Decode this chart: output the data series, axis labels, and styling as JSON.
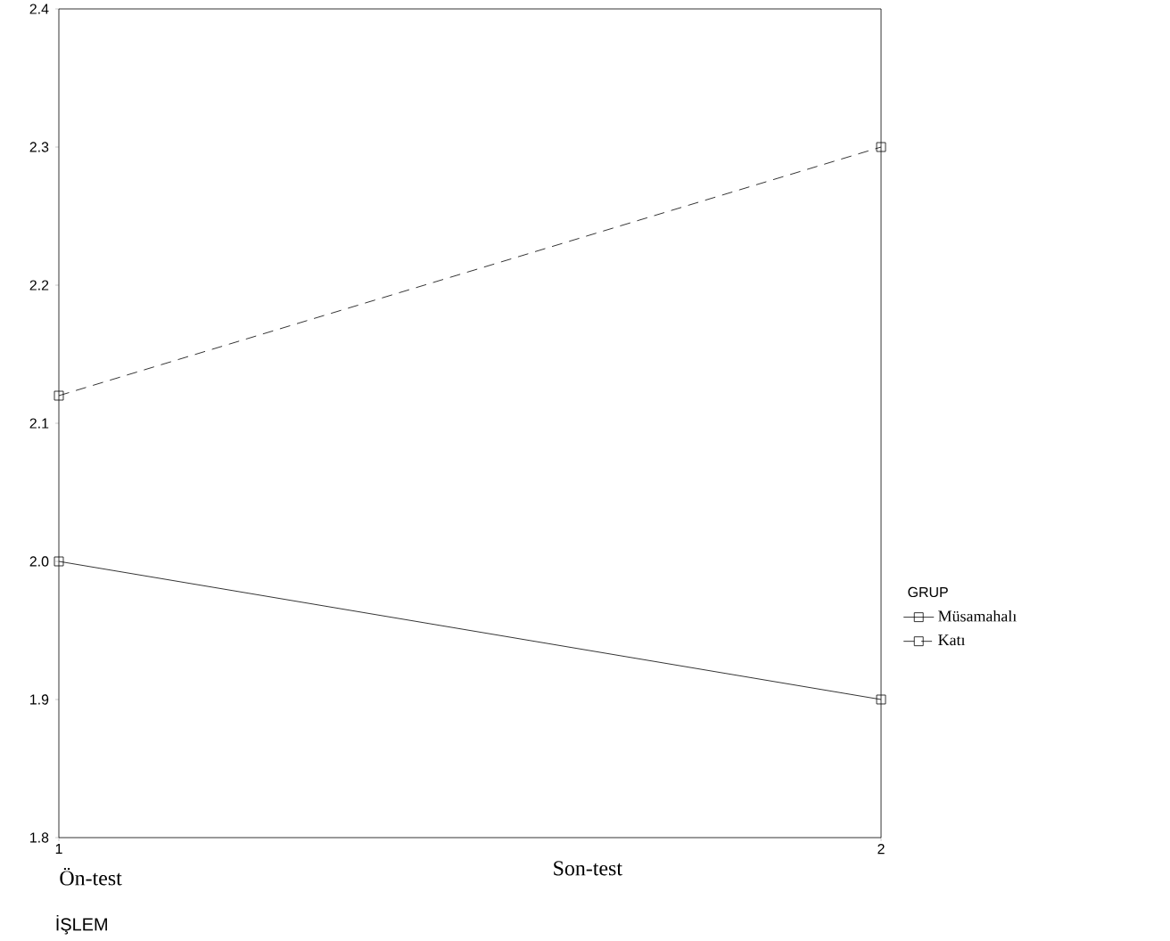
{
  "chart_data": {
    "type": "line",
    "xlabel": "İŞLEM",
    "legend_title": "GRUP",
    "x": [
      1,
      2
    ],
    "xlim": [
      1,
      2
    ],
    "xticks": [
      1,
      2
    ],
    "ylim": [
      1.8,
      2.4
    ],
    "yticks": [
      1.8,
      1.9,
      {
        "value": 2.0,
        "label": "2.0"
      },
      2.1,
      2.2,
      2.3,
      2.4
    ],
    "annotations": [
      "Ön-test",
      "Son-test"
    ],
    "marker": "square",
    "legend": "right",
    "series": [
      {
        "name": "Müsamahalı",
        "color": "#000000",
        "line_style": "solid",
        "values": [
          2.0,
          1.9
        ]
      },
      {
        "name": "Katı",
        "color": "#000000",
        "line_style": "dashed",
        "values": [
          2.12,
          2.3
        ]
      }
    ]
  }
}
